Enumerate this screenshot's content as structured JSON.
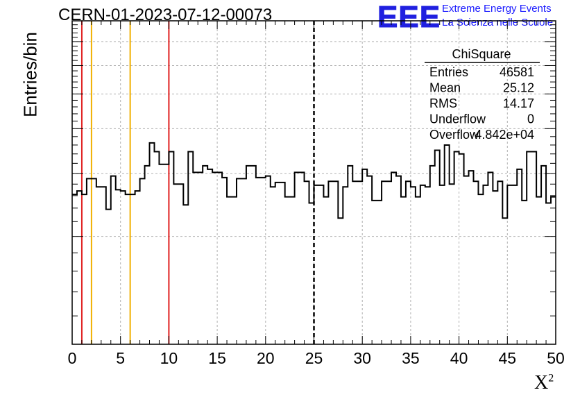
{
  "header": {
    "title": "CERN-01-2023-07-12-00073",
    "logo_text": "EEE",
    "logo_line1": "Extreme Energy Events",
    "logo_line2": "La Scienza nelle Scuole"
  },
  "axes": {
    "ylabel": "Entries/bin",
    "xlabel": "X",
    "xlabel_sup": "2"
  },
  "stats_box": {
    "title": "ChiSquare",
    "rows": [
      {
        "label": "Entries",
        "value": "46581"
      },
      {
        "label": "Mean",
        "value": "25.12"
      },
      {
        "label": "RMS",
        "value": "14.17"
      },
      {
        "label": "Underflow",
        "value": "0"
      },
      {
        "label": "Overflow",
        "value": "4.842e+04"
      }
    ]
  },
  "colors": {
    "red_line": "#e02020",
    "yellow_line": "#f0b000",
    "grid": "#b0b0b0",
    "histogram": "#000000"
  },
  "chart_data": {
    "type": "histogram",
    "xlim": [
      0,
      50
    ],
    "x_ticks": [
      0,
      5,
      10,
      15,
      20,
      25,
      30,
      35,
      40,
      45,
      50
    ],
    "bin_width": 0.5,
    "y_scale": "log",
    "y_tick_labels_visible": false,
    "grid": true,
    "vertical_lines": [
      {
        "x": 1,
        "color": "red",
        "style": "solid"
      },
      {
        "x": 2,
        "color": "yellow",
        "style": "solid"
      },
      {
        "x": 6,
        "color": "yellow",
        "style": "solid"
      },
      {
        "x": 10,
        "color": "red",
        "style": "solid"
      },
      {
        "x": 25,
        "color": "black",
        "style": "dashed"
      }
    ],
    "values": [
      262,
      268,
      262,
      290,
      290,
      275,
      275,
      238,
      295,
      270,
      268,
      262,
      262,
      268,
      290,
      315,
      365,
      345,
      318,
      318,
      345,
      280,
      280,
      245,
      345,
      302,
      302,
      315,
      308,
      302,
      302,
      292,
      258,
      258,
      290,
      290,
      315,
      315,
      292,
      292,
      295,
      275,
      283,
      283,
      258,
      258,
      302,
      302,
      285,
      248,
      278,
      278,
      258,
      285,
      285,
      225,
      275,
      315,
      285,
      285,
      308,
      295,
      252,
      252,
      285,
      285,
      302,
      295,
      258,
      285,
      275,
      258,
      278,
      275,
      315,
      348,
      278,
      360,
      280,
      345,
      340,
      295,
      305,
      285,
      262,
      278,
      302,
      268,
      285,
      225,
      278,
      278,
      308,
      252,
      345,
      345,
      258,
      315,
      248,
      258
    ]
  }
}
